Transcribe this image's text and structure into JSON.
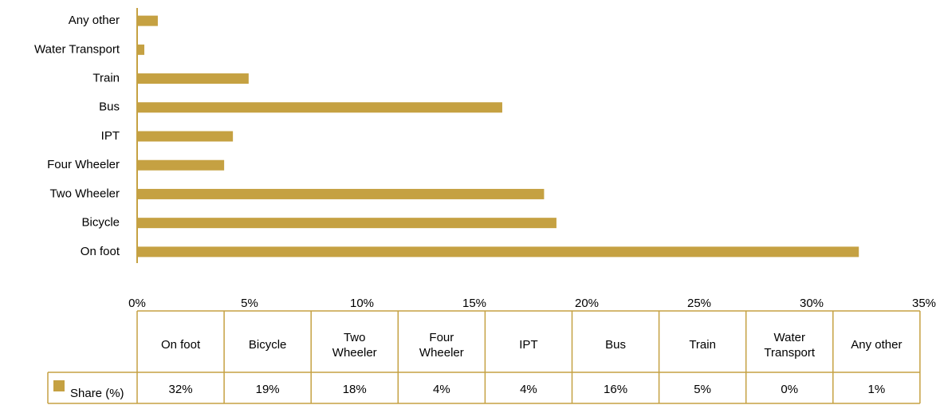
{
  "chart_data": {
    "type": "bar",
    "orientation": "horizontal",
    "categories": [
      "On foot",
      "Bicycle",
      "Two Wheeler",
      "Four Wheeler",
      "IPT",
      "Bus",
      "Train",
      "Water Transport",
      "Any other"
    ],
    "series": [
      {
        "name": "Share (%)",
        "color": "#c5a142",
        "values": [
          32.1,
          18.65,
          18.1,
          3.87,
          4.26,
          16.24,
          4.96,
          0.32,
          0.92
        ],
        "value_labels": [
          "32%",
          "19%",
          "18%",
          "4%",
          "4%",
          "16%",
          "5%",
          "0%",
          "1%"
        ]
      }
    ],
    "xlim": [
      0,
      35
    ],
    "xticks": [
      {
        "value": 0,
        "label": "0%"
      },
      {
        "value": 5,
        "label": "5%"
      },
      {
        "value": 10,
        "label": "10%"
      },
      {
        "value": 15,
        "label": "15%"
      },
      {
        "value": 20,
        "label": "20%"
      },
      {
        "value": 25,
        "label": "25%"
      },
      {
        "value": 30,
        "label": "30%"
      },
      {
        "value": 35,
        "label": "35%"
      }
    ],
    "data_table": true
  }
}
